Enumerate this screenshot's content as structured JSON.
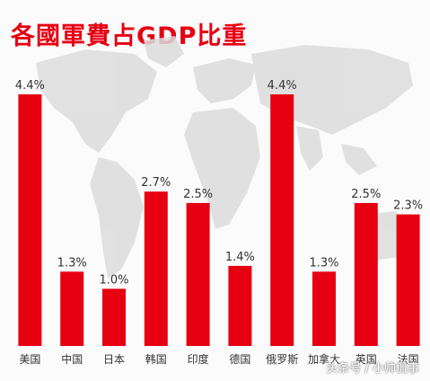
{
  "title": "各國軍費占GDP比重",
  "watermark": "头条号 / 小帅侃事",
  "colors": {
    "bar": "#e60012",
    "title": "#e60012",
    "map": "#dcdcdc"
  },
  "chart_data": {
    "type": "bar",
    "title": "各國軍費占GDP比重",
    "categories": [
      "美国",
      "中国",
      "日本",
      "韩国",
      "印度",
      "德国",
      "俄罗斯",
      "加拿大",
      "英国",
      "法国"
    ],
    "values": [
      4.4,
      1.3,
      1.0,
      2.7,
      2.5,
      1.4,
      4.4,
      1.3,
      2.5,
      2.3
    ],
    "data_labels": [
      "4.4%",
      "1.3%",
      "1.0%",
      "2.7%",
      "2.5%",
      "1.4%",
      "4.4%",
      "1.3%",
      "2.5%",
      "2.3%"
    ],
    "unit": "%",
    "xlabel": "",
    "ylabel": "",
    "ylim": [
      0,
      4.4
    ],
    "grid": false,
    "legend": "none"
  }
}
